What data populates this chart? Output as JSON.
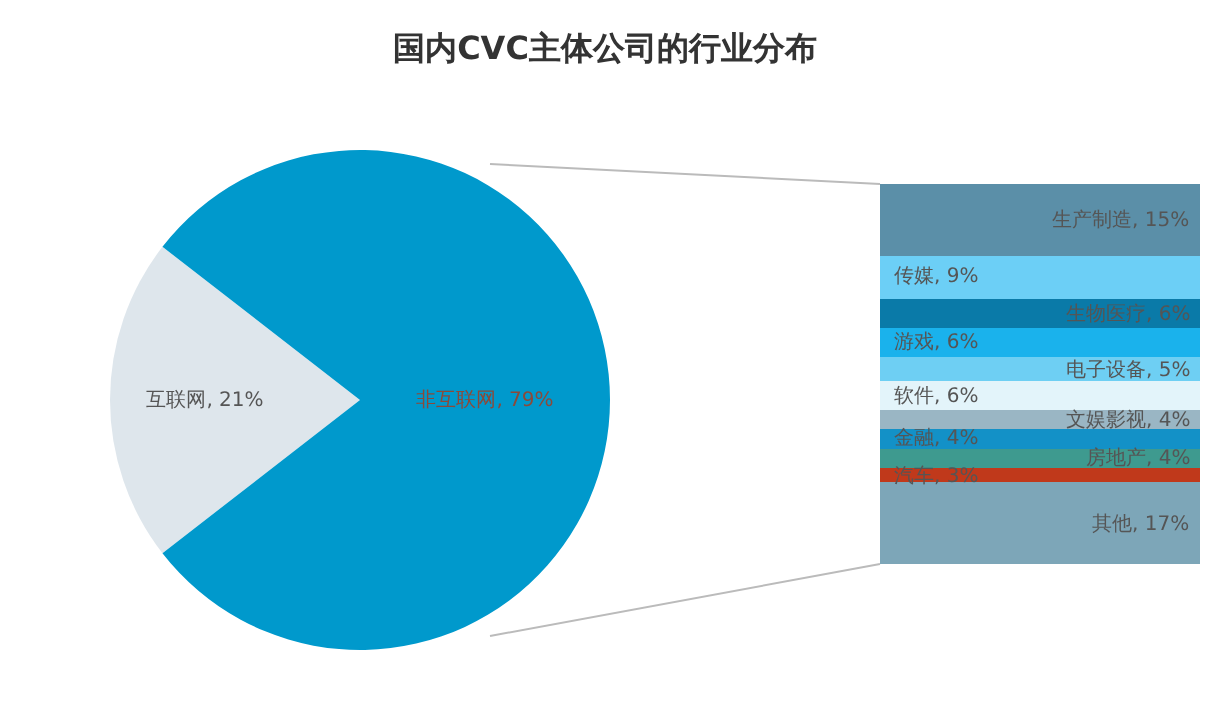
{
  "chart_data": [
    {
      "type": "pie",
      "title": "国内CVC主体公司的行业分布",
      "categories": [
        "互联网",
        "非互联网"
      ],
      "values": [
        21,
        79
      ],
      "colors": [
        "#dee6ec",
        "#0099cc"
      ],
      "value_labels": [
        "21%",
        "79%"
      ]
    },
    {
      "type": "bar",
      "stacked": true,
      "categories": [
        null
      ],
      "series": [
        {
          "color": "#7da6b8",
          "values": [
            17
          ],
          "value_labels": [
            "其他, 17%"
          ]
        },
        {
          "color": "#c0391b",
          "values": [
            3
          ],
          "value_labels": [
            "汽车, 3%"
          ]
        },
        {
          "color": "#3e9a8f",
          "values": [
            4
          ],
          "value_labels": [
            "房地产, 4%"
          ]
        },
        {
          "color": "#1391c7",
          "values": [
            4
          ],
          "value_labels": [
            "金融, 4%"
          ]
        },
        {
          "color": "#9ab6c4",
          "values": [
            4
          ],
          "value_labels": [
            "文娱影视, 4%"
          ]
        },
        {
          "color": "#e3f4fa",
          "values": [
            6
          ],
          "value_labels": [
            "软件, 6%"
          ]
        },
        {
          "color": "#6ecff3",
          "values": [
            5
          ],
          "value_labels": [
            "电子设备, 5%"
          ]
        },
        {
          "color": "#1ab2ec",
          "values": [
            6
          ],
          "value_labels": [
            "游戏, 6%"
          ]
        },
        {
          "color": "#0a7aa8",
          "values": [
            6
          ],
          "value_labels": [
            "生物医疗, 6%"
          ]
        },
        {
          "color": "#6ccff6",
          "values": [
            9
          ],
          "value_labels": [
            "传媒, 9%"
          ]
        },
        {
          "color": "#5b8fa8",
          "values": [
            15
          ],
          "value_labels": [
            "生产制造, 15%"
          ]
        }
      ]
    }
  ]
}
